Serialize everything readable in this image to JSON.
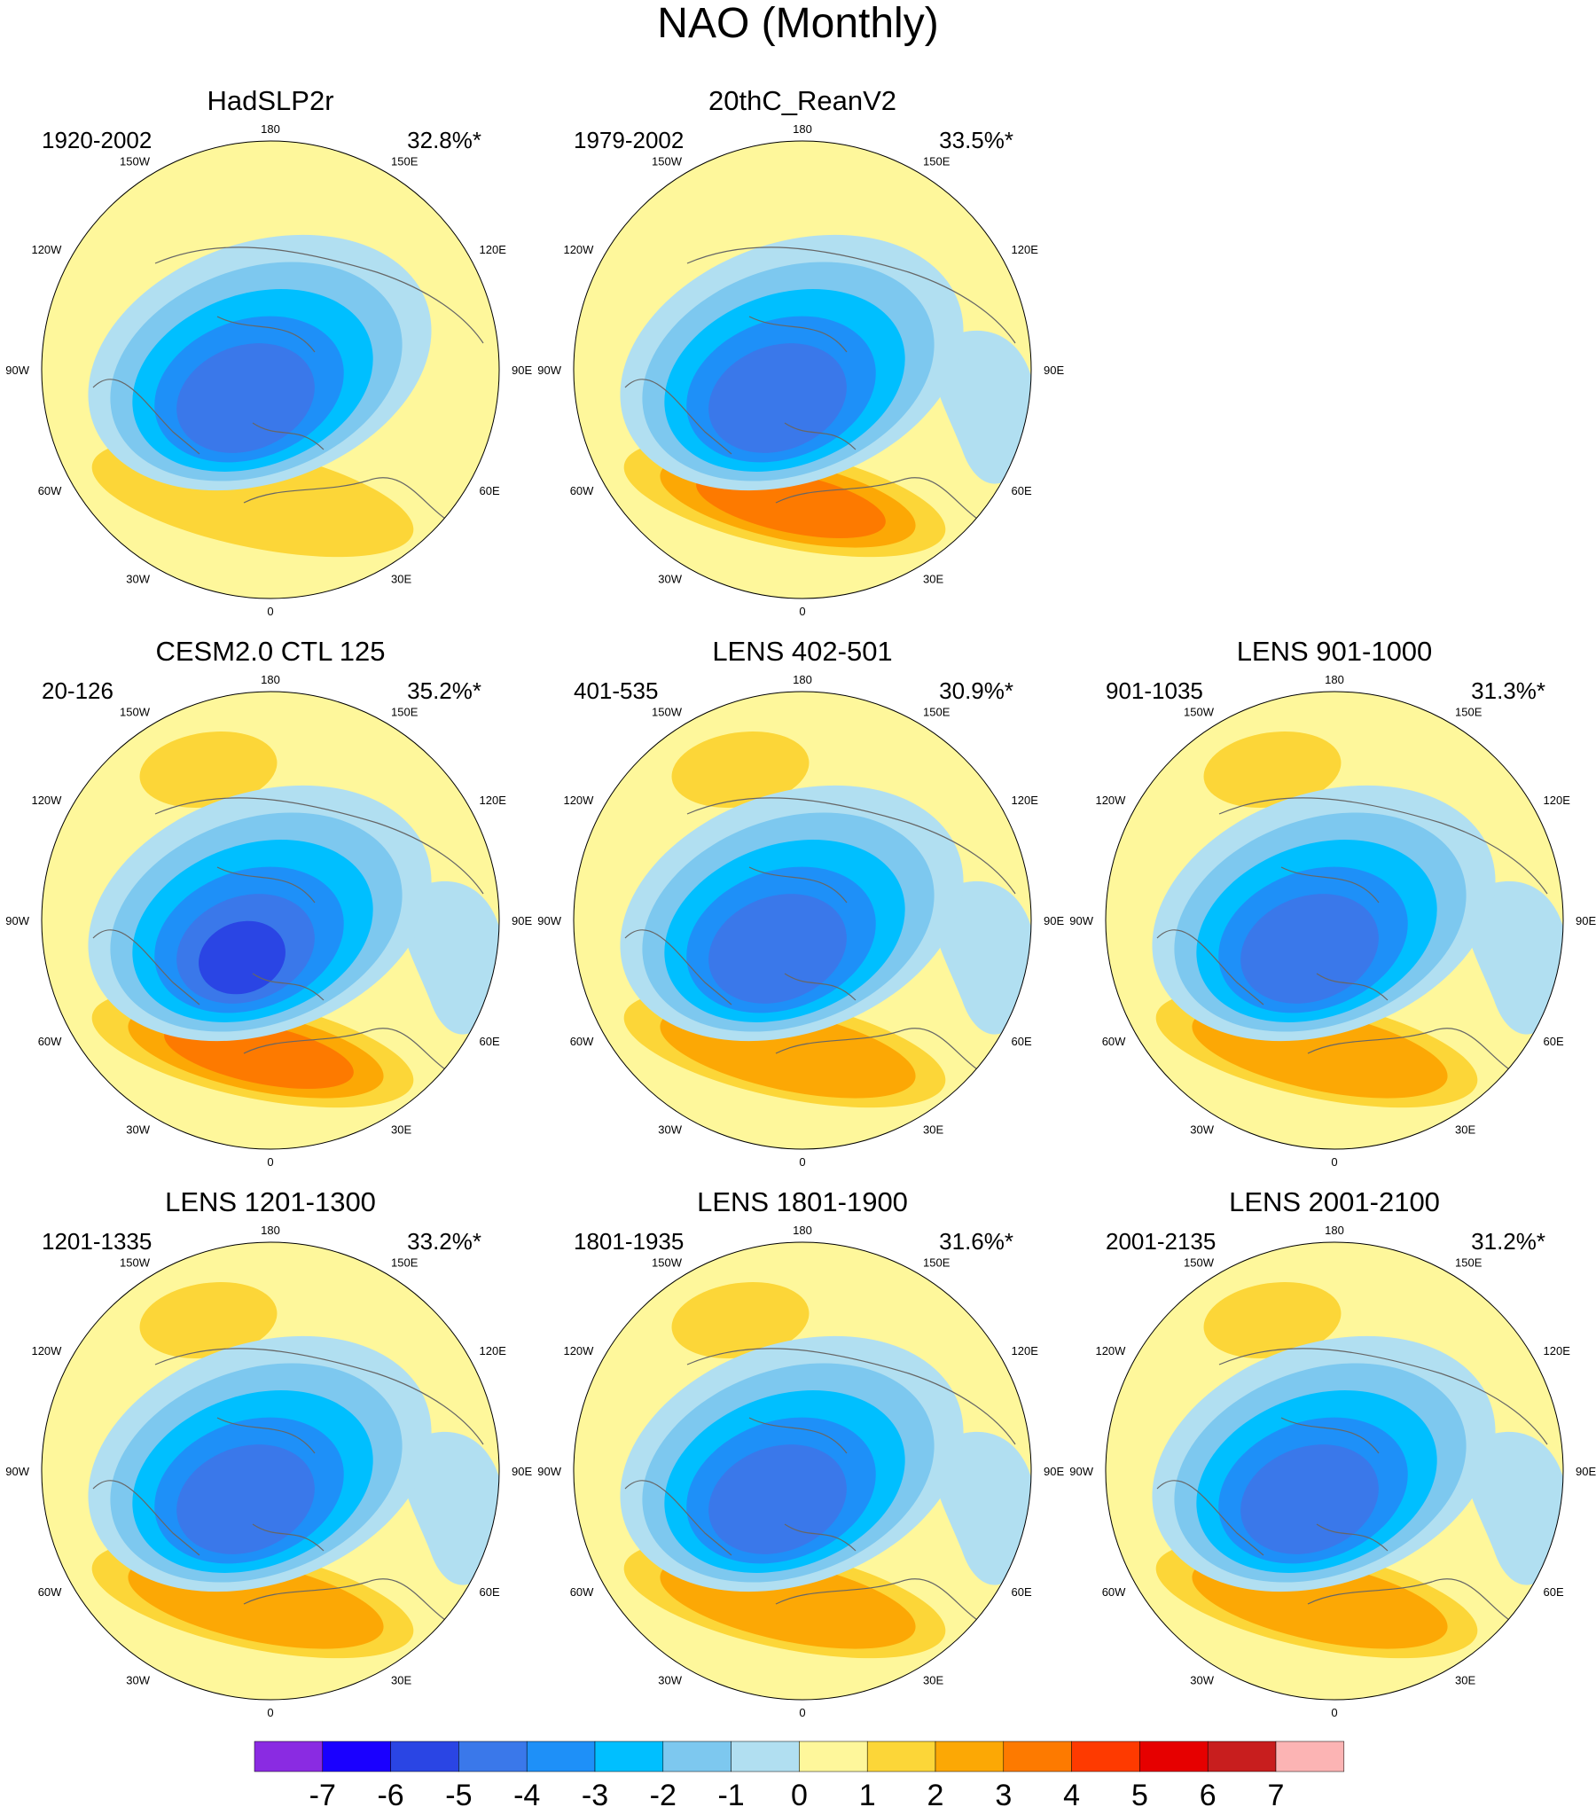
{
  "title": "NAO (Monthly)",
  "chart_data": {
    "type": "polar-contour-map",
    "title": "NAO (Monthly)",
    "lon_labels": [
      "180",
      "150E",
      "120E",
      "90E",
      "60E",
      "30E",
      "0",
      "30W",
      "60W",
      "90W",
      "120W",
      "150W"
    ],
    "panels": [
      {
        "title": "HadSLP2r",
        "period": "1920-2002",
        "variance": "32.8%*",
        "high_center": 2,
        "low_center": -5,
        "pacific_high": false,
        "pacific_high_north": false,
        "asia_low": false
      },
      {
        "title": "20thC_ReanV2",
        "period": "1979-2002",
        "variance": "33.5%*",
        "high_center": 4,
        "low_center": -5,
        "pacific_high": false,
        "pacific_high_north": true,
        "asia_low": true
      },
      {
        "title": "CESM2.0 CTL 125",
        "period": "20-126",
        "variance": "35.2%*",
        "high_center": 4,
        "low_center": -6,
        "pacific_high": true,
        "pacific_high_north": false,
        "asia_low": true
      },
      {
        "title": "LENS 402-501",
        "period": "401-535",
        "variance": "30.9%*",
        "high_center": 3,
        "low_center": -5,
        "pacific_high": true,
        "pacific_high_north": false,
        "asia_low": true
      },
      {
        "title": "LENS 901-1000",
        "period": "901-1035",
        "variance": "31.3%*",
        "high_center": 3,
        "low_center": -5,
        "pacific_high": true,
        "pacific_high_north": false,
        "asia_low": true
      },
      {
        "title": "LENS 1201-1300",
        "period": "1201-1335",
        "variance": "33.2%*",
        "high_center": 3,
        "low_center": -5,
        "pacific_high": true,
        "pacific_high_north": false,
        "asia_low": true
      },
      {
        "title": "LENS 1801-1900",
        "period": "1801-1935",
        "variance": "31.6%*",
        "high_center": 3,
        "low_center": -5,
        "pacific_high": true,
        "pacific_high_north": false,
        "asia_low": true
      },
      {
        "title": "LENS 2001-2100",
        "period": "2001-2135",
        "variance": "31.2%*",
        "high_center": 3,
        "low_center": -5,
        "pacific_high": true,
        "pacific_high_north": false,
        "asia_low": true
      }
    ],
    "colorbar": {
      "labels": [
        "-7",
        "-6",
        "-5",
        "-4",
        "-3",
        "-2",
        "-1",
        "0",
        "1",
        "2",
        "3",
        "4",
        "5",
        "6",
        "7"
      ],
      "levels": [
        -7,
        -6,
        -5,
        -4,
        -3,
        -2,
        -1,
        0,
        1,
        2,
        3,
        4,
        5,
        6,
        7
      ],
      "colors": [
        "#8a2be2",
        "#1a00ff",
        "#2a45e4",
        "#3a78ea",
        "#1e90f8",
        "#00bfff",
        "#7dc8ef",
        "#b1dff1",
        "#fef79b",
        "#fcd638",
        "#fca805",
        "#fd7a00",
        "#fe3a00",
        "#e60000",
        "#c81e1e",
        "#fcb4b4"
      ]
    }
  }
}
